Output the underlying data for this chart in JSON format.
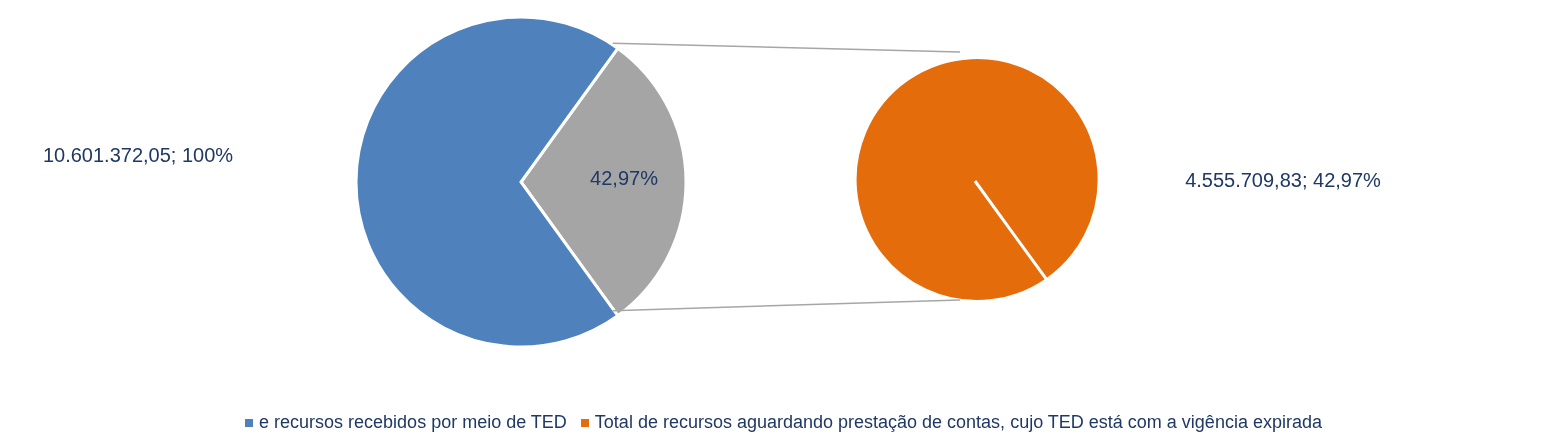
{
  "chart_data": [
    {
      "type": "pie",
      "categories": [
        "e recursos recebidos por meio de TED",
        null
      ],
      "values": [
        10601372.05,
        4555709.83
      ],
      "colors": [
        "#4f81bd",
        "#a5a5a5"
      ],
      "value_labels": [
        "10.601.372,05; 100%",
        null
      ],
      "annotations": [
        "42,97%"
      ],
      "legend": "bottom"
    },
    {
      "type": "pie",
      "categories": [
        "Total de recursos aguardando prestação de contas, cujo TED está com a vigência expirada"
      ],
      "values": [
        4555709.83
      ],
      "colors": [
        "#e46c0a"
      ],
      "value_labels": [
        "4.555.709,83; 42,97%"
      ],
      "legend": "bottom"
    }
  ]
}
